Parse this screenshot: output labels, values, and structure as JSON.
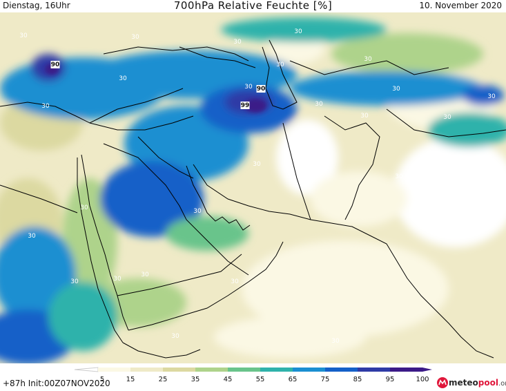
{
  "header": {
    "left": "Dienstag, 16Uhr",
    "title": "700hPa Relative Feuchte [%]",
    "right": "10. November 2020"
  },
  "footer": {
    "left": "+87h Init:00Z07NOV2020"
  },
  "brand": {
    "prefix": "meteo",
    "accent": "pool",
    "suffix": ".org",
    "color": "#e0163a"
  },
  "legend": {
    "ticks": [
      "5",
      "15",
      "25",
      "35",
      "45",
      "55",
      "65",
      "75",
      "85",
      "95",
      "100"
    ],
    "colors": [
      "#ffffff",
      "#fbf8e4",
      "#efeac7",
      "#dcd9a1",
      "#aed38b",
      "#69c48b",
      "#2fb2ab",
      "#1b8fd1",
      "#1460c8",
      "#2e3aa6",
      "#3b1a88"
    ]
  },
  "contour_labels": [
    {
      "text": "30"
    },
    {
      "text": "90"
    },
    {
      "text": "30"
    },
    {
      "text": "30"
    },
    {
      "text": "30"
    },
    {
      "text": "30"
    },
    {
      "text": "30"
    },
    {
      "text": "30"
    },
    {
      "text": "90"
    },
    {
      "text": "99"
    },
    {
      "text": "30"
    },
    {
      "text": "30"
    },
    {
      "text": "30"
    },
    {
      "text": "30"
    },
    {
      "text": "30"
    },
    {
      "text": "30"
    },
    {
      "text": "30"
    },
    {
      "text": "30"
    },
    {
      "text": "30"
    },
    {
      "text": "30"
    },
    {
      "text": "30"
    },
    {
      "text": "30"
    },
    {
      "text": "30"
    },
    {
      "text": "30"
    },
    {
      "text": "30"
    },
    {
      "text": "30"
    },
    {
      "text": "30"
    },
    {
      "text": "30"
    },
    {
      "text": "30"
    }
  ]
}
